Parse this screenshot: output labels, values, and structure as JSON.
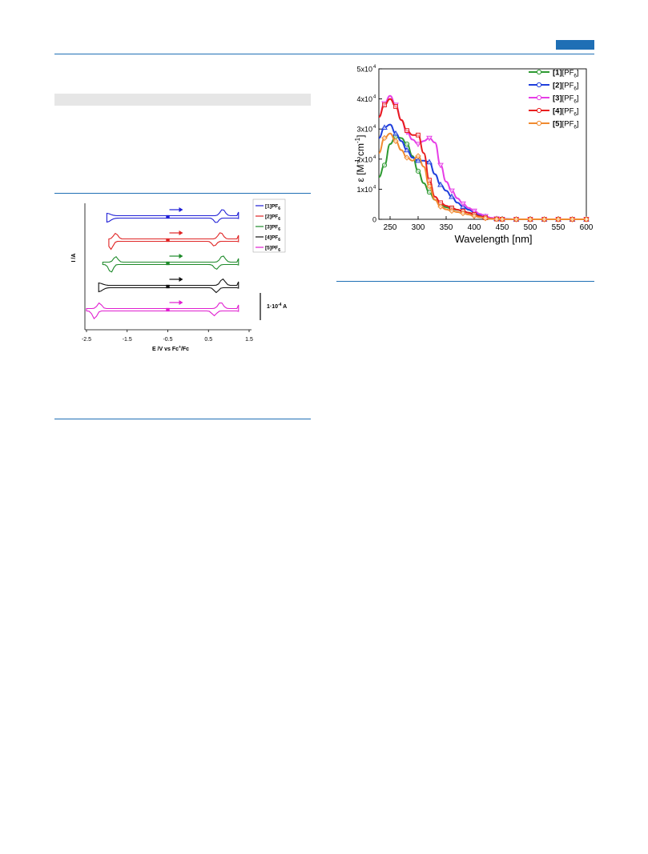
{
  "page": {
    "accent_color": "#1f6fb5",
    "band_color": "#e6e6e6"
  },
  "cv_figure": {
    "chart_data": {
      "type": "line",
      "xlabel": "E /V vs Fc+/Fc",
      "xlabel_main": "E /V vs Fc",
      "xlabel_sup": "+",
      "xlabel_tail": "/Fc",
      "ylabel": "I /A",
      "xlim": [
        -2.5,
        1.5
      ],
      "xticks": [
        "-2.5",
        "-1.5",
        "-0.5",
        "0.5",
        "1.5"
      ],
      "xtick_values": [
        -2.5,
        -1.5,
        -0.5,
        0.5,
        1.5
      ],
      "scale_bar_text": "1·10",
      "scale_bar_exp": "-4",
      "scale_bar_unit": "A",
      "scan_direction": "anodic",
      "grid": false,
      "legend_position": "top-right",
      "series": [
        {
          "name": "[1]PF6",
          "label": "[1]PF",
          "sub": "6",
          "color": "#1f1fd6",
          "oxidation_E": 0.85,
          "reduction_E": null,
          "start_E": -0.5
        },
        {
          "name": "[2]PF6",
          "label": "[2]PF",
          "sub": "6",
          "color": "#e02424",
          "oxidation_E": 0.8,
          "reduction_E": -1.9,
          "start_E": -0.5
        },
        {
          "name": "[3]PF6",
          "label": "[3]PF",
          "sub": "6",
          "color": "#1e8a2a",
          "oxidation_E": 0.85,
          "reduction_E": -1.9,
          "start_E": -0.5
        },
        {
          "name": "[4]PF6",
          "label": "[4]PF",
          "sub": "6",
          "color": "#111111",
          "oxidation_E": 0.85,
          "reduction_E": null,
          "start_E": -0.5
        },
        {
          "name": "[5]PF6",
          "label": "[5]PF",
          "sub": "6",
          "color": "#e01fd0",
          "oxidation_E": 0.8,
          "reduction_E": -2.3,
          "start_E": -0.5
        }
      ]
    }
  },
  "uv_figure": {
    "chart_data": {
      "type": "line",
      "xlabel": "Wavelength [nm]",
      "ylabel": "ε [M-1 cm-1]",
      "ylabel_eps": "ε [M",
      "ylabel_sup1": "-1",
      "ylabel_mid": " cm",
      "ylabel_sup2": "-1",
      "ylabel_end": "]",
      "xlim": [
        230,
        600
      ],
      "ylim": [
        0,
        50000
      ],
      "xticks": [
        "250",
        "300",
        "350",
        "400",
        "450",
        "500",
        "550",
        "600"
      ],
      "xtick_values": [
        250,
        300,
        350,
        400,
        450,
        500,
        550,
        600
      ],
      "yticks": [
        {
          "value": 0,
          "mant": "0",
          "exp": ""
        },
        {
          "value": 10000,
          "mant": "1x10",
          "exp": "4"
        },
        {
          "value": 20000,
          "mant": "2x10",
          "exp": "4"
        },
        {
          "value": 30000,
          "mant": "3x10",
          "exp": "4"
        },
        {
          "value": 40000,
          "mant": "4x10",
          "exp": "4"
        },
        {
          "value": 50000,
          "mant": "5x10",
          "exp": "4"
        }
      ],
      "grid": false,
      "legend_position": "top-right",
      "series": [
        {
          "name": "[1][PF6]",
          "bold": "[1]",
          "rest": "[PF",
          "sub": "6",
          "close": "]",
          "color": "#2e9a32",
          "x": [
            230,
            240,
            250,
            260,
            270,
            280,
            290,
            300,
            310,
            320,
            330,
            340,
            350,
            360,
            370,
            380,
            390,
            400,
            410,
            420,
            430,
            440,
            450,
            475,
            500,
            525,
            550,
            575,
            600
          ],
          "y": [
            14000,
            18000,
            25000,
            27500,
            27000,
            25000,
            21000,
            16000,
            12000,
            9000,
            6500,
            4800,
            4000,
            3500,
            3100,
            2700,
            2200,
            1700,
            1200,
            700,
            350,
            150,
            50,
            0,
            0,
            0,
            0,
            0,
            0
          ]
        },
        {
          "name": "[2][PF6]",
          "bold": "[2]",
          "rest": "[PF",
          "sub": "6",
          "close": "]",
          "color": "#1f3fdc",
          "x": [
            230,
            240,
            250,
            260,
            270,
            280,
            290,
            300,
            310,
            320,
            330,
            340,
            350,
            360,
            370,
            380,
            390,
            400,
            410,
            420,
            430,
            440,
            450,
            475,
            500,
            525,
            550,
            575,
            600
          ],
          "y": [
            27000,
            30500,
            31500,
            28500,
            26000,
            23000,
            20500,
            19500,
            19500,
            19000,
            15000,
            11500,
            9500,
            7500,
            5500,
            4200,
            3200,
            2400,
            1600,
            900,
            400,
            150,
            50,
            0,
            0,
            0,
            0,
            0,
            0
          ]
        },
        {
          "name": "[3][PF6]",
          "bold": "[3]",
          "rest": "[PF",
          "sub": "6",
          "close": "]",
          "color": "#e63ee6",
          "x": [
            230,
            240,
            250,
            260,
            270,
            280,
            290,
            300,
            310,
            320,
            330,
            340,
            350,
            360,
            370,
            380,
            390,
            400,
            410,
            420,
            430,
            440,
            450,
            475,
            500,
            525,
            550,
            575,
            600
          ],
          "y": [
            34000,
            38500,
            41000,
            38000,
            33000,
            29000,
            26500,
            25000,
            26000,
            27000,
            25500,
            18000,
            12500,
            9500,
            7000,
            5200,
            3800,
            2800,
            1800,
            1000,
            500,
            200,
            80,
            0,
            0,
            0,
            0,
            0,
            0
          ]
        },
        {
          "name": "[4][PF6]",
          "bold": "[4]",
          "rest": "[PF",
          "sub": "6",
          "close": "]",
          "color": "#e81e1e",
          "x": [
            230,
            240,
            250,
            260,
            270,
            280,
            290,
            300,
            310,
            320,
            330,
            340,
            350,
            360,
            370,
            380,
            390,
            400,
            410,
            420,
            430,
            440,
            450,
            475,
            500,
            525,
            550,
            575,
            600
          ],
          "y": [
            34000,
            38000,
            40000,
            37500,
            33000,
            29500,
            28000,
            28000,
            22000,
            13000,
            7500,
            5500,
            4500,
            3800,
            3200,
            2700,
            2200,
            1600,
            1000,
            500,
            200,
            80,
            20,
            0,
            0,
            0,
            0,
            0,
            0
          ]
        },
        {
          "name": "[5][PF6]",
          "bold": "[5]",
          "rest": "[PF",
          "sub": "6",
          "close": "]",
          "color": "#f08a30",
          "x": [
            230,
            240,
            250,
            260,
            270,
            280,
            290,
            300,
            310,
            320,
            330,
            340,
            350,
            360,
            370,
            380,
            390,
            400,
            410,
            420,
            430,
            440,
            450,
            475,
            500,
            525,
            550,
            575,
            600
          ],
          "y": [
            22000,
            27000,
            28500,
            26000,
            23000,
            20500,
            19500,
            21000,
            17500,
            11000,
            6500,
            4200,
            3300,
            2800,
            2400,
            2000,
            1600,
            1100,
            700,
            350,
            120,
            40,
            10,
            0,
            0,
            0,
            0,
            0,
            0
          ]
        }
      ]
    }
  }
}
